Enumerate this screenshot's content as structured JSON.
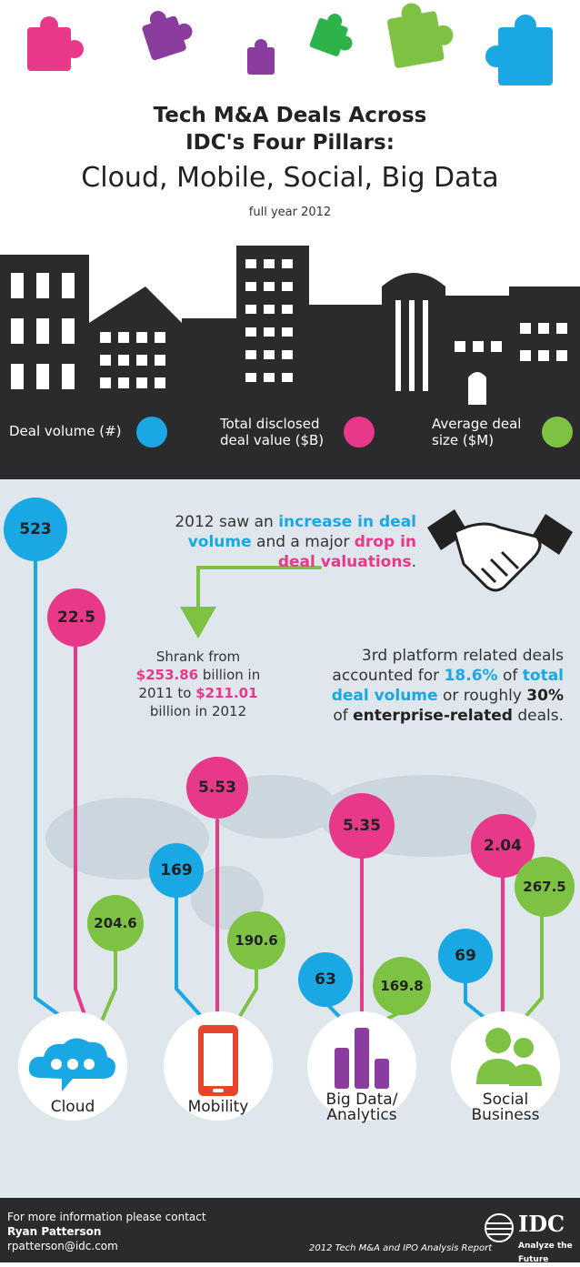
{
  "header": {
    "title_line1": "Tech M&A Deals Across",
    "title_line2": "IDC's Four Pillars:",
    "title_line3": "Cloud, Mobile, Social, Big Data",
    "subtitle": "full year 2012"
  },
  "legend": {
    "volume_label": "Deal volume (#)",
    "value_line1": "Total disclosed",
    "value_line2": "deal value ($B)",
    "size_line1": "Average deal",
    "size_line2": "size ($M)"
  },
  "colors": {
    "blue": "#19a8e3",
    "pink": "#e8388a",
    "green": "#7dc243",
    "dark": "#2b2b2d"
  },
  "totals": {
    "deal_volume": "523",
    "deal_value": "22.5"
  },
  "callout": {
    "p1": "2012 saw an ",
    "increase": "increase in deal",
    "volume": "volume",
    "p2": " and a major ",
    "drop": "drop in",
    "valuations": "deal valuations",
    "period": "."
  },
  "shrank": {
    "line1": "Shrank from",
    "from_value": "$253.86",
    "line2": " billion in",
    "line3a": "2011 to ",
    "to_value": "$211.01",
    "line4": "billion in 2012"
  },
  "platform": {
    "line1": "3rd platform related deals",
    "l2a": "accounted for ",
    "pct": "18.6%",
    "l2b": " of ",
    "total": "total",
    "deal_volume": "deal volume",
    "l3b": " or roughly ",
    "pct2": "30%",
    "l4a": "of ",
    "enterprise": "enterprise-related",
    "l4b": " deals."
  },
  "pillars": [
    {
      "name": "Cloud",
      "volume": "523",
      "value": "22.5",
      "size": "204.6"
    },
    {
      "name": "Mobility",
      "volume": "169",
      "value": "5.53",
      "size": "190.6"
    },
    {
      "name_line1": "Big Data/",
      "name_line2": "Analytics",
      "volume": "63",
      "value": "5.35",
      "size": "169.8"
    },
    {
      "name_line1": "Social",
      "name_line2": "Business",
      "volume": "69",
      "value": "2.04",
      "size": "267.5"
    }
  ],
  "footer": {
    "contact_line": "For more information please contact",
    "name": "Ryan Patterson",
    "email": "rpatterson@idc.com",
    "report": "2012 Tech M&A and IPO Analysis Report",
    "brand": "IDC",
    "tagline": "Analyze the Future"
  }
}
